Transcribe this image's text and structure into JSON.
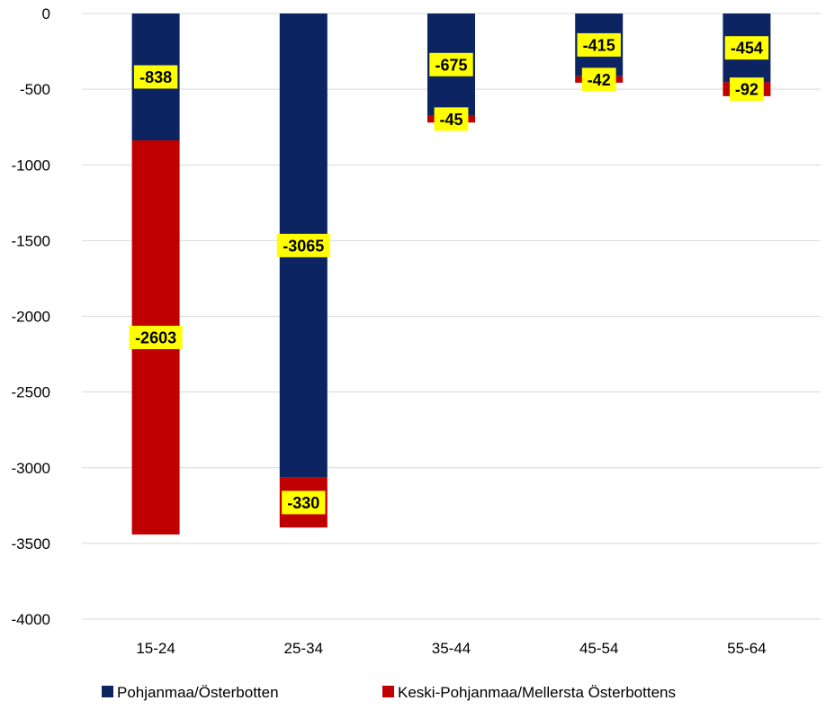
{
  "chart_data": {
    "type": "bar",
    "stacked": true,
    "categories": [
      "15-24",
      "25-34",
      "35-44",
      "45-54",
      "55-64"
    ],
    "series": [
      {
        "name": "Pohjanmaa/Österbotten",
        "values": [
          -838,
          -3065,
          -675,
          -415,
          -454
        ],
        "labels": [
          "-838",
          "-3065",
          "-675",
          "-415",
          "-454"
        ],
        "color": "#0d2463"
      },
      {
        "name": "Keski-Pohjanmaa/Mellersta Österbottens",
        "values": [
          -2603,
          -330,
          -45,
          -42,
          -92
        ],
        "labels": [
          "-2603",
          "-330",
          "-45",
          "-42",
          "-92"
        ],
        "color": "#c00000"
      }
    ],
    "ylim": [
      -4000,
      0
    ],
    "yticks": [
      0,
      -500,
      -1000,
      -1500,
      -2000,
      -2500,
      -3000,
      -3500,
      -4000
    ],
    "ytick_labels": [
      "0",
      "-500",
      "-1000",
      "-1500",
      "-2000",
      "-2500",
      "-3000",
      "-3500",
      "-4000"
    ],
    "grid": true,
    "legend_position": "bottom",
    "label_background": "#ffff00",
    "title": "",
    "xlabel": "",
    "ylabel": ""
  }
}
